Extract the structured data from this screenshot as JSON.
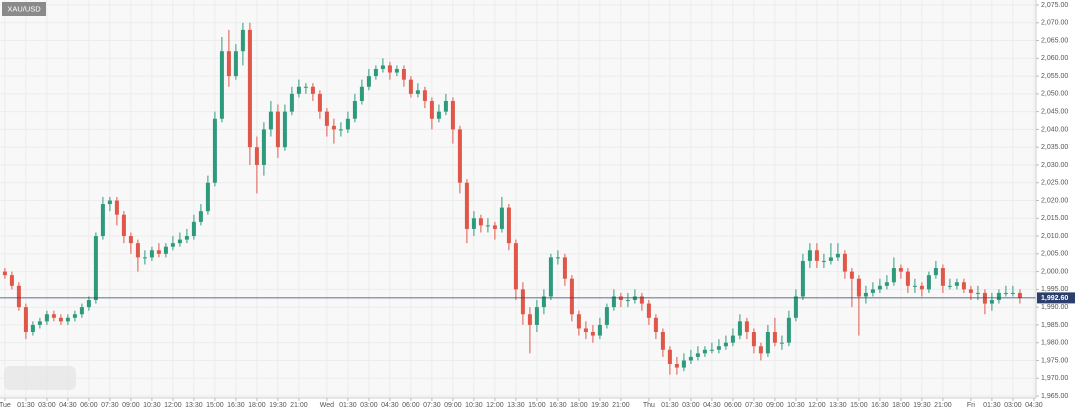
{
  "chart_data": {
    "type": "candlestick",
    "title": "XAU/USD",
    "up_color": "#2e9a7c",
    "down_color": "#e0574a",
    "grid": true,
    "ylim": [
      1965,
      2075
    ],
    "yticks": [
      {
        "value": 1965,
        "label": "1,965.00"
      },
      {
        "value": 1970,
        "label": "1,970.00"
      },
      {
        "value": 1975,
        "label": "1,975.00"
      },
      {
        "value": 1980,
        "label": "1,980.00"
      },
      {
        "value": 1985,
        "label": "1,985.00"
      },
      {
        "value": 1990,
        "label": "1,990.00"
      },
      {
        "value": 1995,
        "label": "1,995.00"
      },
      {
        "value": 2000,
        "label": "2,000.00"
      },
      {
        "value": 2005,
        "label": "2,005.00"
      },
      {
        "value": 2010,
        "label": "2,010.00"
      },
      {
        "value": 2015,
        "label": "2,015.00"
      },
      {
        "value": 2020,
        "label": "2,020.00"
      },
      {
        "value": 2025,
        "label": "2,025.00"
      },
      {
        "value": 2030,
        "label": "2,030.00"
      },
      {
        "value": 2035,
        "label": "2,035.00"
      },
      {
        "value": 2040,
        "label": "2,040.00"
      },
      {
        "value": 2045,
        "label": "2,045.00"
      },
      {
        "value": 2050,
        "label": "2,050.00"
      },
      {
        "value": 2055,
        "label": "2,055.00"
      },
      {
        "value": 2060,
        "label": "2,060.00"
      },
      {
        "value": 2065,
        "label": "2,065.00"
      },
      {
        "value": 2070,
        "label": "2,070.00"
      },
      {
        "value": 2075,
        "label": "2,075.00"
      }
    ],
    "xlim": [
      -0.7,
      147.3
    ],
    "xticks": [
      {
        "value": 0,
        "label": "Tue"
      },
      {
        "value": 3,
        "label": "01:30"
      },
      {
        "value": 6,
        "label": "03:00"
      },
      {
        "value": 9,
        "label": "04:30"
      },
      {
        "value": 12,
        "label": "06:00"
      },
      {
        "value": 15,
        "label": "07:30"
      },
      {
        "value": 18,
        "label": "09:00"
      },
      {
        "value": 21,
        "label": "10:30"
      },
      {
        "value": 24,
        "label": "12:00"
      },
      {
        "value": 27,
        "label": "13:30"
      },
      {
        "value": 30,
        "label": "15:00"
      },
      {
        "value": 33,
        "label": "16:30"
      },
      {
        "value": 36,
        "label": "18:00"
      },
      {
        "value": 39,
        "label": "19:30"
      },
      {
        "value": 42,
        "label": "21:00"
      },
      {
        "value": 46,
        "label": "Wed"
      },
      {
        "value": 49,
        "label": "01:30"
      },
      {
        "value": 52,
        "label": "03:00"
      },
      {
        "value": 55,
        "label": "04:30"
      },
      {
        "value": 58,
        "label": "06:00"
      },
      {
        "value": 61,
        "label": "07:30"
      },
      {
        "value": 64,
        "label": "09:00"
      },
      {
        "value": 67,
        "label": "10:30"
      },
      {
        "value": 70,
        "label": "12:00"
      },
      {
        "value": 73,
        "label": "13:30"
      },
      {
        "value": 76,
        "label": "15:00"
      },
      {
        "value": 79,
        "label": "16:30"
      },
      {
        "value": 82,
        "label": "18:00"
      },
      {
        "value": 85,
        "label": "19:30"
      },
      {
        "value": 88,
        "label": "21:00"
      },
      {
        "value": 92,
        "label": "Thu"
      },
      {
        "value": 95,
        "label": "01:30"
      },
      {
        "value": 98,
        "label": "03:00"
      },
      {
        "value": 101,
        "label": "04:30"
      },
      {
        "value": 104,
        "label": "06:00"
      },
      {
        "value": 107,
        "label": "07:30"
      },
      {
        "value": 110,
        "label": "09:00"
      },
      {
        "value": 113,
        "label": "10:30"
      },
      {
        "value": 116,
        "label": "12:00"
      },
      {
        "value": 119,
        "label": "13:30"
      },
      {
        "value": 122,
        "label": "15:00"
      },
      {
        "value": 125,
        "label": "16:30"
      },
      {
        "value": 128,
        "label": "18:00"
      },
      {
        "value": 131,
        "label": "19:30"
      },
      {
        "value": 134,
        "label": "21:00"
      },
      {
        "value": 138,
        "label": "Fri"
      },
      {
        "value": 141,
        "label": "01:30"
      },
      {
        "value": 144,
        "label": "03:00"
      },
      {
        "value": 147,
        "label": "04:30"
      }
    ],
    "last_price": {
      "value": 1992.6,
      "label": "1,992.60"
    },
    "open": [
      2000,
      1999,
      1996,
      1990,
      1983,
      1985,
      1986,
      1988,
      1987,
      1986,
      1987,
      1988,
      1990,
      1992,
      2010,
      2019,
      2020,
      2016,
      2010,
      2008,
      2004,
      2004,
      2006,
      2005,
      2007,
      2008,
      2009,
      2010,
      2014,
      2017,
      2025,
      2043,
      2062,
      2055,
      2062,
      2068,
      2035,
      2030,
      2040,
      2045,
      2035,
      2045,
      2050,
      2052,
      2052,
      2050,
      2045,
      2041,
      2040,
      2040,
      2043,
      2048,
      2052,
      2055,
      2057,
      2058,
      2056,
      2057,
      2054,
      2050,
      2051,
      2048,
      2043,
      2045,
      2048,
      2040,
      2025,
      2012,
      2015,
      2013,
      2013,
      2012,
      2018,
      2008,
      1995,
      1988,
      1985,
      1990,
      1993,
      2004,
      2004,
      1998,
      1988,
      1984,
      1983,
      1982,
      1985,
      1990,
      1993,
      1992,
      1992,
      1993,
      1991,
      1987,
      1983,
      1978,
      1974,
      1973,
      1975,
      1976,
      1977,
      1978,
      1978,
      1979,
      1980,
      1982,
      1986,
      1983,
      1979,
      1977,
      1983,
      1980,
      1980,
      1987,
      1993,
      2003,
      2006,
      2003,
      2003,
      2004,
      2005,
      2000,
      1998,
      1993,
      1994,
      1995,
      1996,
      1997,
      2001,
      2000,
      1996,
      1996,
      1995,
      1999,
      2001,
      1996,
      1996,
      1997,
      1995,
      1994,
      1994,
      1991,
      1992,
      1994,
      1994,
      1994
    ],
    "high": [
      2001,
      2000,
      1997,
      1991,
      1986,
      1987,
      1989,
      1989,
      1988,
      1988,
      1989,
      1991,
      1993,
      2011,
      2021,
      2021,
      2021,
      2017,
      2011,
      2009,
      2006,
      2007,
      2008,
      2008,
      2010,
      2011,
      2012,
      2016,
      2019,
      2027,
      2045,
      2066,
      2068,
      2064,
      2070,
      2070,
      2038,
      2042,
      2048,
      2047,
      2047,
      2052,
      2054,
      2053,
      2053,
      2051,
      2046,
      2043,
      2042,
      2045,
      2050,
      2054,
      2057,
      2058,
      2060,
      2059,
      2058,
      2058,
      2055,
      2053,
      2052,
      2049,
      2047,
      2050,
      2049,
      2041,
      2026,
      2017,
      2016,
      2015,
      2014,
      2021,
      2019,
      2009,
      1997,
      1990,
      1992,
      1995,
      2005,
      2006,
      2005,
      1999,
      1989,
      1986,
      1985,
      1987,
      1991,
      1995,
      1994,
      1994,
      1995,
      1994,
      1992,
      1988,
      1984,
      1979,
      1976,
      1977,
      1978,
      1979,
      1979,
      1980,
      1981,
      1982,
      1984,
      1988,
      1987,
      1984,
      1980,
      1985,
      1987,
      1982,
      1989,
      1995,
      2005,
      2008,
      2008,
      2005,
      2008,
      2008,
      2006,
      2001,
      1999,
      1996,
      1997,
      1998,
      1999,
      2004,
      2002,
      2001,
      1998,
      1997,
      2000,
      2003,
      2002,
      1998,
      1998,
      1998,
      1996,
      1996,
      1995,
      1994,
      1995,
      1996,
      1996,
      1995
    ],
    "low": [
      1998,
      1995,
      1989,
      1981,
      1982,
      1984,
      1985,
      1986,
      1985,
      1985,
      1986,
      1987,
      1989,
      1991,
      2009,
      2017,
      2013,
      2008,
      2005,
      2000,
      2002,
      2003,
      2004,
      2004,
      2006,
      2007,
      2008,
      2009,
      2013,
      2016,
      2024,
      2042,
      2052,
      2054,
      2058,
      2030,
      2022,
      2027,
      2038,
      2032,
      2034,
      2044,
      2049,
      2050,
      2048,
      2043,
      2038,
      2036,
      2038,
      2039,
      2042,
      2047,
      2051,
      2054,
      2056,
      2054,
      2055,
      2052,
      2049,
      2049,
      2046,
      2040,
      2042,
      2044,
      2036,
      2022,
      2008,
      2010,
      2011,
      2011,
      2009,
      2011,
      2006,
      1992,
      1985,
      1977,
      1983,
      1988,
      1992,
      2002,
      1996,
      1986,
      1982,
      1981,
      1980,
      1981,
      1984,
      1989,
      1990,
      1990,
      1991,
      1989,
      1985,
      1981,
      1976,
      1971,
      1971,
      1972,
      1974,
      1975,
      1976,
      1977,
      1977,
      1978,
      1979,
      1981,
      1981,
      1977,
      1975,
      1976,
      1979,
      1978,
      1979,
      1986,
      1992,
      2001,
      2001,
      2001,
      2002,
      2003,
      1998,
      1990,
      1982,
      1991,
      1993,
      1994,
      1995,
      1996,
      1998,
      1994,
      1994,
      1993,
      1994,
      1998,
      1994,
      1995,
      1995,
      1994,
      1992,
      1992,
      1988,
      1989,
      1991,
      1993,
      1993,
      1991
    ],
    "close": [
      1999,
      1996,
      1990,
      1983,
      1985,
      1986,
      1988,
      1987,
      1986,
      1987,
      1988,
      1990,
      1992,
      2010,
      2019,
      2020,
      2016,
      2010,
      2008,
      2004,
      2004,
      2006,
      2005,
      2007,
      2008,
      2009,
      2010,
      2014,
      2017,
      2025,
      2043,
      2062,
      2055,
      2062,
      2068,
      2035,
      2030,
      2040,
      2045,
      2035,
      2045,
      2050,
      2052,
      2052,
      2050,
      2045,
      2041,
      2040,
      2040,
      2043,
      2048,
      2052,
      2055,
      2057,
      2058,
      2056,
      2057,
      2054,
      2050,
      2051,
      2048,
      2043,
      2045,
      2048,
      2040,
      2025,
      2012,
      2015,
      2013,
      2013,
      2012,
      2018,
      2008,
      1995,
      1988,
      1985,
      1990,
      1993,
      2004,
      2004,
      1998,
      1988,
      1984,
      1983,
      1982,
      1985,
      1990,
      1993,
      1992,
      1992,
      1993,
      1991,
      1987,
      1983,
      1978,
      1974,
      1973,
      1975,
      1976,
      1977,
      1978,
      1978,
      1979,
      1980,
      1982,
      1986,
      1983,
      1979,
      1977,
      1983,
      1980,
      1980,
      1987,
      1993,
      2003,
      2006,
      2003,
      2003,
      2004,
      2005,
      2000,
      1998,
      1993,
      1994,
      1995,
      1996,
      1997,
      2001,
      2000,
      1996,
      1996,
      1995,
      1999,
      2001,
      1996,
      1996,
      1997,
      1995,
      1994,
      1994,
      1991,
      1992,
      1994,
      1994,
      1994,
      1992.6
    ]
  }
}
